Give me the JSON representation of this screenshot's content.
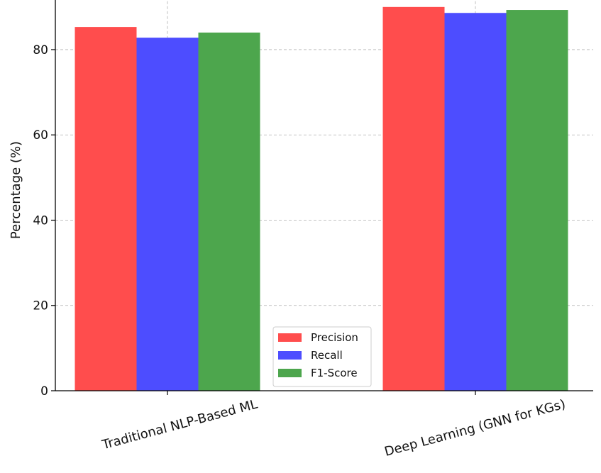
{
  "chart_data": {
    "type": "bar",
    "categories": [
      "Traditional NLP-Based ML",
      "Deep Learning (GNN for KGs)"
    ],
    "series": [
      {
        "name": "Precision",
        "color": "#ff4d4d",
        "values": [
          85.3,
          90.0
        ]
      },
      {
        "name": "Recall",
        "color": "#4d4dff",
        "values": [
          82.8,
          88.6
        ]
      },
      {
        "name": "F1-Score",
        "color": "#4da64d",
        "values": [
          84.0,
          89.3
        ]
      }
    ],
    "title": "",
    "xlabel": "",
    "ylabel": "Percentage (%)",
    "ylim": [
      0,
      91.5
    ],
    "yticks": [
      0,
      20,
      40,
      60,
      80
    ],
    "grid": true,
    "legend_position": "bottom-center"
  }
}
